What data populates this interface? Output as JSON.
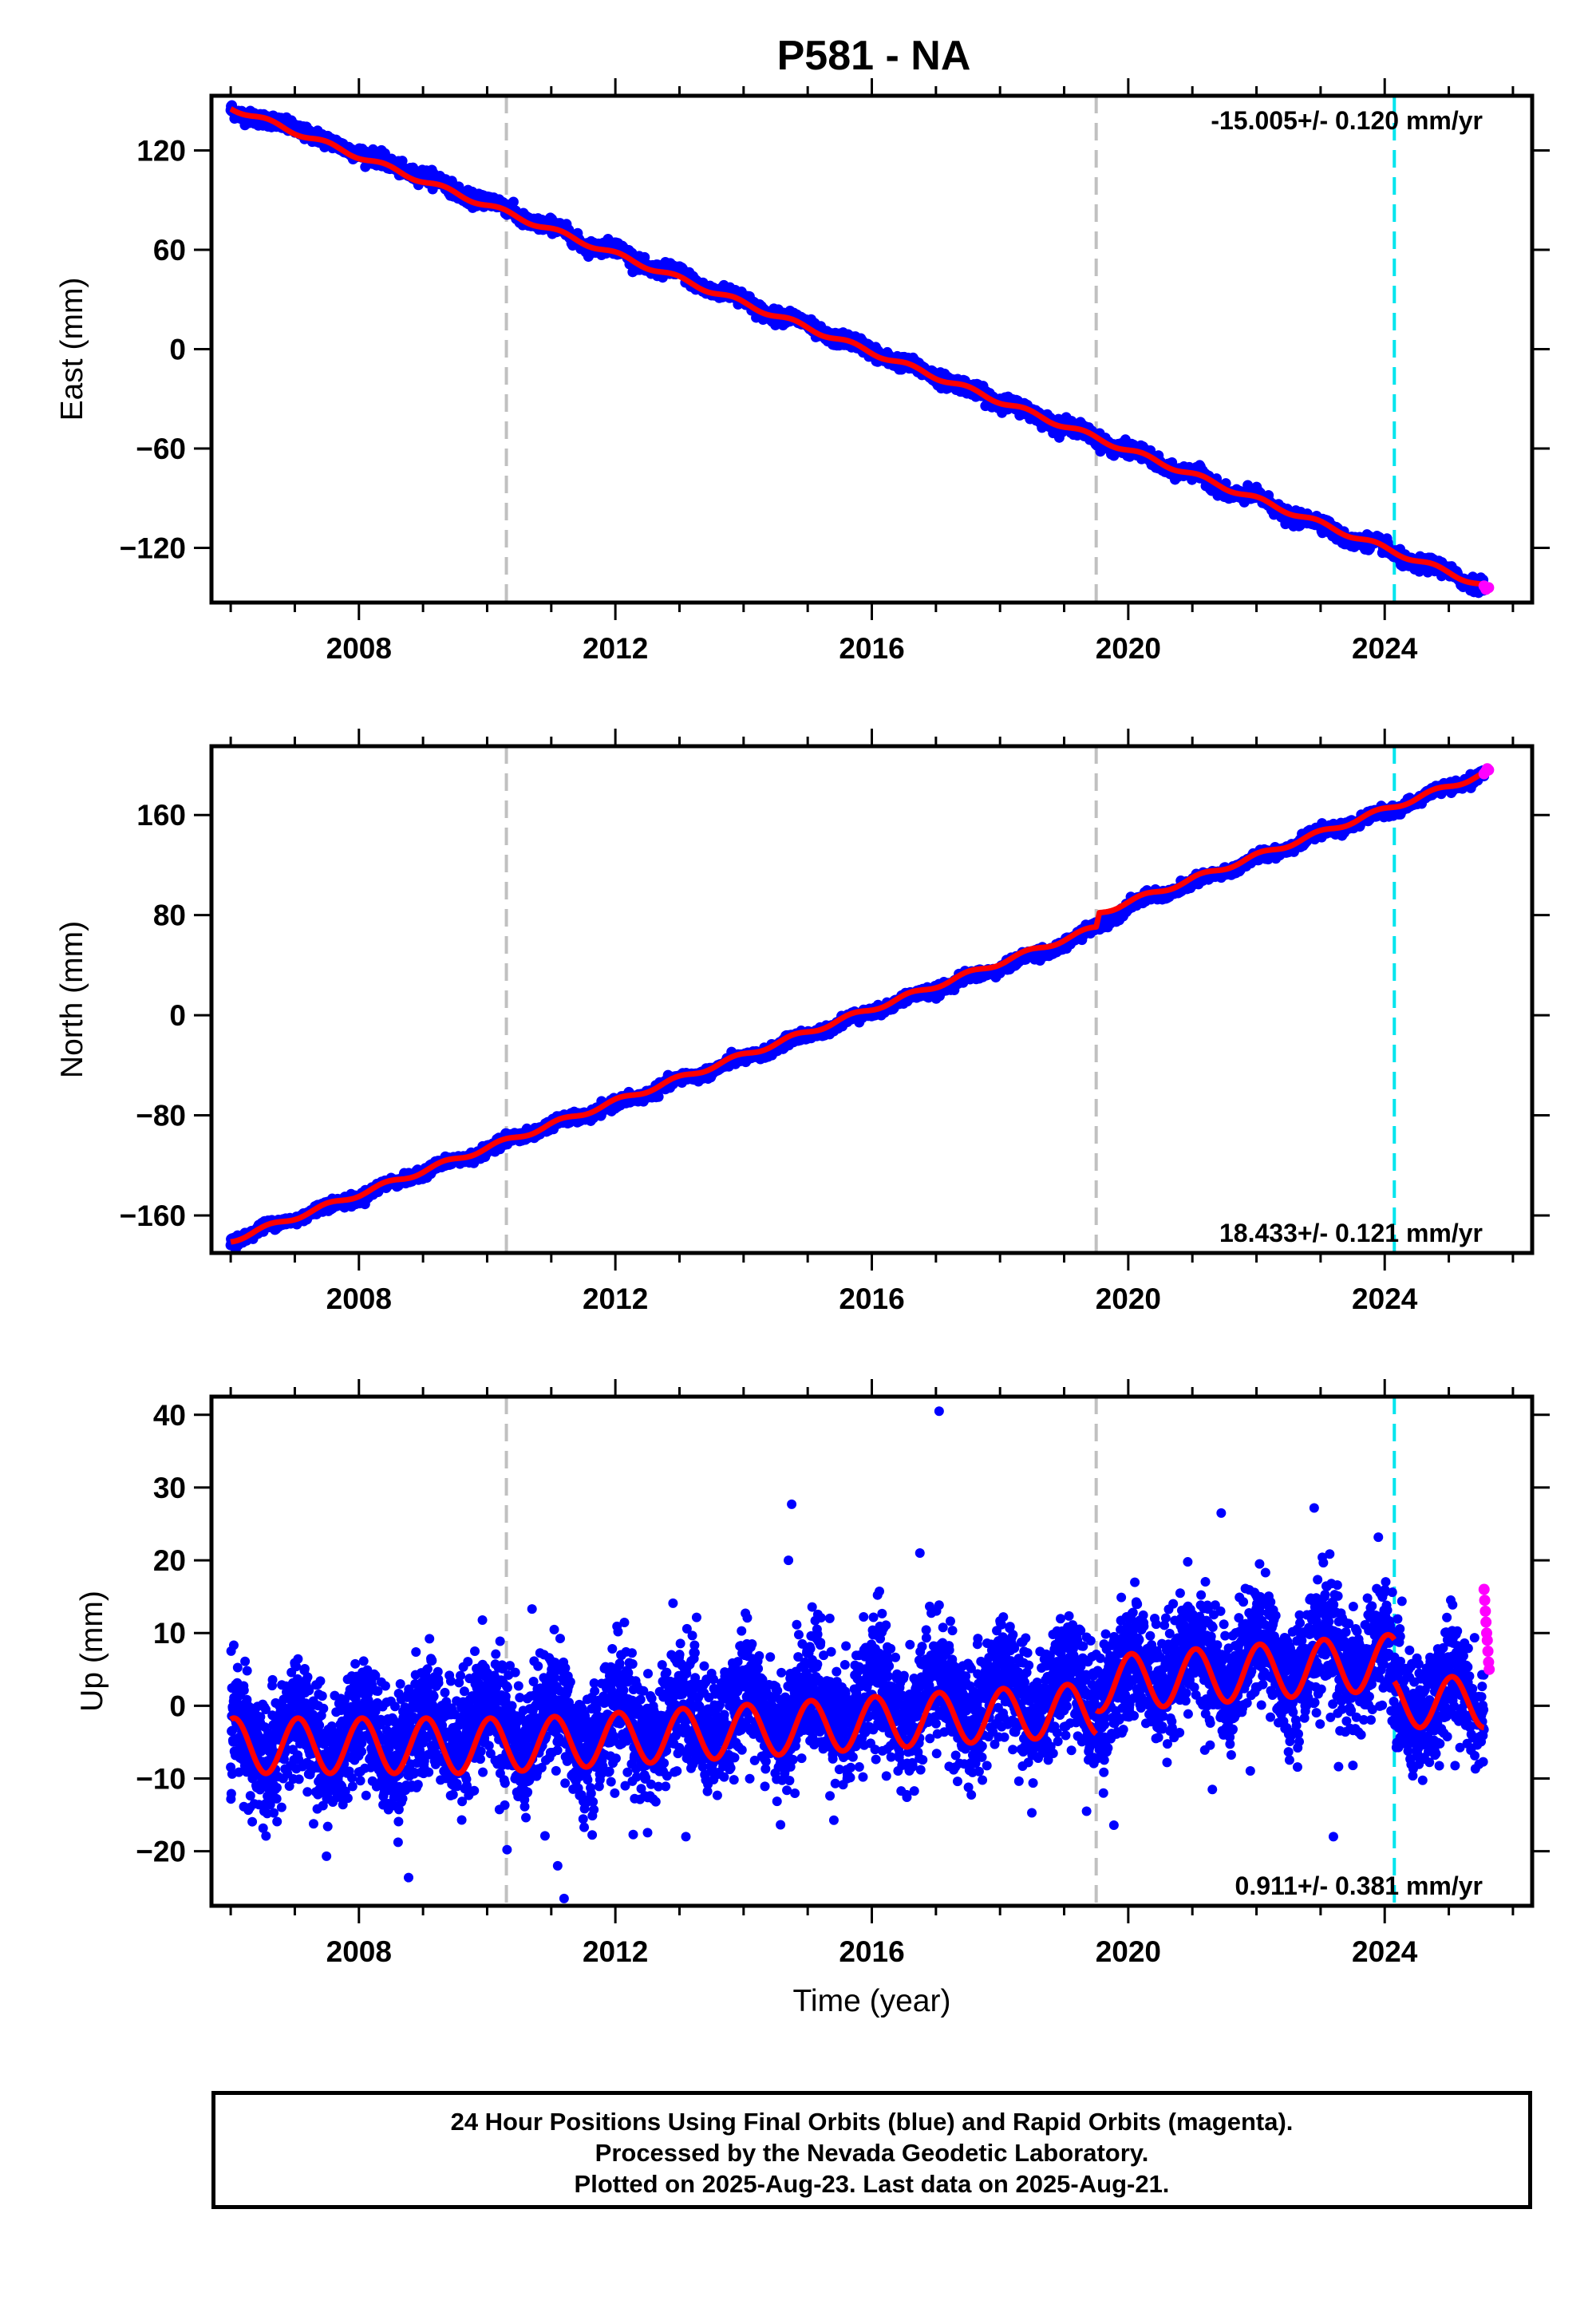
{
  "title": "P581 - NA",
  "footer": {
    "line1": "24 Hour Positions Using Final Orbits (blue) and Rapid Orbits (magenta).",
    "line2": "Processed by the Nevada Geodetic Laboratory.",
    "line3": "Plotted on 2025-Aug-23. Last data on 2025-Aug-21."
  },
  "colors": {
    "final": "#0000ff",
    "rapid": "#ff00ff",
    "model": "#ff0000",
    "equipment_change": "#c0c0c0",
    "event": "#00e5ee"
  },
  "chart_data": [
    {
      "type": "scatter",
      "ylabel": "East (mm)",
      "xlabel": "",
      "xlim": [
        2005.7,
        2026.3
      ],
      "ylim": [
        -153,
        153
      ],
      "yticks": [
        -120,
        -60,
        0,
        60,
        120
      ],
      "xticks": [
        2008,
        2012,
        2016,
        2020,
        2024
      ],
      "rate_label": "-15.005+/- 0.120 mm/yr",
      "rate_position": "top-right",
      "vertical_lines": [
        {
          "x": 2010.3,
          "kind": "equipment_change"
        },
        {
          "x": 2019.5,
          "kind": "equipment_change"
        },
        {
          "x": 2024.15,
          "kind": "event"
        }
      ],
      "series": [
        {
          "kind": "final_orbits",
          "x": [
            2006.0,
            2006.5,
            2007.0,
            2007.5,
            2008.0,
            2008.5,
            2009.0,
            2009.5,
            2010.0,
            2010.5,
            2011.0,
            2011.5,
            2012.0,
            2012.5,
            2013.0,
            2013.5,
            2014.0,
            2014.5,
            2015.0,
            2015.5,
            2016.0,
            2016.5,
            2017.0,
            2017.5,
            2018.0,
            2018.5,
            2019.0,
            2019.5,
            2020.0,
            2020.5,
            2021.0,
            2021.5,
            2022.0,
            2022.5,
            2023.0,
            2023.5,
            2024.0,
            2024.5,
            2025.0,
            2025.5
          ],
          "y": [
            146,
            137,
            135,
            124,
            120,
            110,
            106,
            95,
            90,
            80,
            74,
            64,
            60,
            50,
            45,
            36,
            30,
            20,
            15,
            5,
            0,
            -10,
            -15,
            -25,
            -30,
            -40,
            -45,
            -55,
            -60,
            -70,
            -75,
            -85,
            -90,
            -100,
            -106,
            -115,
            -120,
            -130,
            -134,
            -143
          ]
        },
        {
          "kind": "model",
          "x": [
            2006.0,
            2025.55
          ],
          "y": [
            146,
            -143
          ],
          "slope": -15.005,
          "seasonal_amplitude": 1.5
        },
        {
          "kind": "rapid_orbits",
          "x": [
            2025.55,
            2025.58,
            2025.6,
            2025.62
          ],
          "y": [
            -143,
            -145,
            -144,
            -144
          ]
        }
      ]
    },
    {
      "type": "scatter",
      "ylabel": "North (mm)",
      "xlabel": "",
      "xlim": [
        2005.7,
        2026.3
      ],
      "ylim": [
        -190,
        215
      ],
      "yticks": [
        -160,
        -80,
        0,
        80,
        160
      ],
      "xticks": [
        2008,
        2012,
        2016,
        2020,
        2024
      ],
      "rate_label": "18.433+/- 0.121 mm/yr",
      "rate_position": "bottom-right",
      "vertical_lines": [
        {
          "x": 2010.3,
          "kind": "equipment_change"
        },
        {
          "x": 2019.5,
          "kind": "equipment_change"
        },
        {
          "x": 2024.15,
          "kind": "event"
        }
      ],
      "series": [
        {
          "kind": "final_orbits",
          "x": [
            2006.0,
            2007.0,
            2008.0,
            2009.0,
            2010.0,
            2010.3,
            2011.0,
            2012.0,
            2013.0,
            2014.0,
            2015.0,
            2016.0,
            2017.0,
            2018.0,
            2019.0,
            2019.5,
            2020.0,
            2021.0,
            2022.0,
            2023.0,
            2024.0,
            2025.0,
            2025.55
          ],
          "y": [
            -180,
            -162,
            -145,
            -125,
            -108,
            -100,
            -88,
            -72,
            -52,
            -35,
            -16,
            3,
            21,
            38,
            57,
            70,
            88,
            105,
            125,
            145,
            162,
            182,
            193
          ]
        },
        {
          "kind": "model",
          "x": [
            2006.0,
            2019.5,
            2019.55,
            2025.55
          ],
          "y": [
            -180,
            70,
            82,
            193
          ],
          "slope": 18.433,
          "seasonal_amplitude": 2.0
        },
        {
          "kind": "rapid_orbits",
          "x": [
            2025.55,
            2025.58,
            2025.6,
            2025.62
          ],
          "y": [
            193,
            195,
            197,
            196
          ]
        }
      ]
    },
    {
      "type": "scatter",
      "ylabel": "Up (mm)",
      "xlabel": "Time (year)",
      "xlim": [
        2005.7,
        2026.3
      ],
      "ylim": [
        -27.5,
        42.5
      ],
      "yticks": [
        -20,
        -10,
        0,
        10,
        20,
        30,
        40
      ],
      "xticks": [
        2008,
        2012,
        2016,
        2020,
        2024
      ],
      "rate_label": "0.911+/- 0.381 mm/yr",
      "rate_position": "bottom-right",
      "vertical_lines": [
        {
          "x": 2010.3,
          "kind": "equipment_change"
        },
        {
          "x": 2019.5,
          "kind": "equipment_change"
        },
        {
          "x": 2024.15,
          "kind": "event"
        }
      ],
      "series": [
        {
          "kind": "model",
          "segments": [
            {
              "x_start": 2006.0,
              "x_end": 2010.3,
              "offset": -5.5,
              "slope": 0.0,
              "amplitude": 3.8
            },
            {
              "x_start": 2010.3,
              "x_end": 2019.5,
              "offset": -5.5,
              "slope": 0.55,
              "amplitude": 3.6
            },
            {
              "x_start": 2019.5,
              "x_end": 2024.15,
              "offset": 3.0,
              "slope": 0.65,
              "amplitude": 3.8
            },
            {
              "x_start": 2024.15,
              "x_end": 2025.55,
              "offset": 0.5,
              "slope": 0.0,
              "amplitude": 3.5
            }
          ]
        },
        {
          "kind": "final_orbits",
          "trend_mean": [
            {
              "x": 2006.0,
              "y": -5
            },
            {
              "x": 2008.0,
              "y": -4.5
            },
            {
              "x": 2010.0,
              "y": -3
            },
            {
              "x": 2012.0,
              "y": -3
            },
            {
              "x": 2014.0,
              "y": -1
            },
            {
              "x": 2016.0,
              "y": 0
            },
            {
              "x": 2018.0,
              "y": 1
            },
            {
              "x": 2019.4,
              "y": 2
            },
            {
              "x": 2020.0,
              "y": 4
            },
            {
              "x": 2022.0,
              "y": 6
            },
            {
              "x": 2024.0,
              "y": 7
            },
            {
              "x": 2024.2,
              "y": 0.5
            },
            {
              "x": 2025.5,
              "y": 1
            }
          ],
          "scatter_sd": 4.0,
          "outliers": [
            {
              "x": 2014.75,
              "y": 27.7
            },
            {
              "x": 2017.05,
              "y": 40.5
            },
            {
              "x": 2021.45,
              "y": 26.5
            },
            {
              "x": 2022.9,
              "y": 27.2
            },
            {
              "x": 2016.75,
              "y": 21.0
            },
            {
              "x": 2014.7,
              "y": 20.0
            },
            {
              "x": 2011.2,
              "y": -26.5
            },
            {
              "x": 2011.1,
              "y": -22
            },
            {
              "x": 2023.2,
              "y": -18
            },
            {
              "x": 2013.1,
              "y": -18
            },
            {
              "x": 2019.35,
              "y": -14.5
            },
            {
              "x": 2010.7,
              "y": 13.3
            }
          ]
        },
        {
          "kind": "rapid_orbits",
          "x": [
            2025.55,
            2025.56,
            2025.57,
            2025.58,
            2025.59,
            2025.6,
            2025.61,
            2025.62,
            2025.63
          ],
          "y": [
            16,
            14.5,
            13,
            11.5,
            10,
            9,
            7.5,
            6,
            5
          ]
        }
      ]
    }
  ]
}
